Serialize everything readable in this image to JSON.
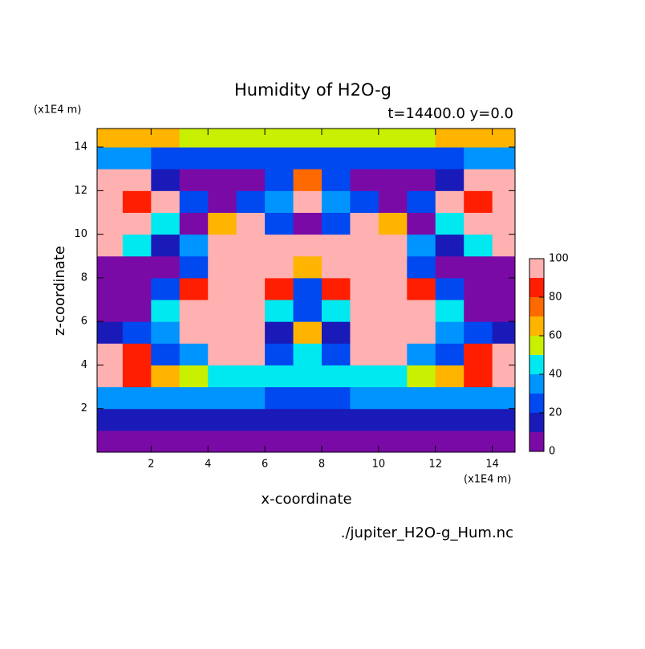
{
  "chart_data": {
    "type": "contour",
    "title": "Humidity of H2O-g",
    "subtitle": "t=14400.0 y=0.0",
    "x_label": "x-coordinate",
    "y_label": "z-coordinate",
    "x_unit": "(x1E4 m)",
    "y_unit": "(x1E4 m)",
    "source": "./jupiter_H2O-g_Hum.nc",
    "xlim": [
      0.1,
      14.8
    ],
    "ylim": [
      0,
      14.85
    ],
    "xticks": [
      2,
      4,
      6,
      8,
      10,
      12,
      14
    ],
    "yticks": [
      2,
      4,
      6,
      8,
      10,
      12,
      14
    ],
    "x": [
      0.5,
      1.5,
      2.5,
      3.5,
      4.5,
      5.5,
      6.5,
      7.5,
      8.5,
      9.5,
      10.5,
      11.5,
      12.5,
      13.5,
      14.5
    ],
    "y": [
      0.5,
      1.5,
      2.5,
      3.5,
      4.5,
      5.5,
      6.5,
      7.5,
      8.5,
      9.5,
      10.5,
      11.5,
      12.5,
      13.5,
      14.5
    ],
    "z": [
      [
        5,
        5,
        5,
        5,
        5,
        5,
        5,
        5,
        5,
        5,
        5,
        5,
        5,
        5,
        5
      ],
      [
        15,
        15,
        15,
        15,
        15,
        15,
        12,
        10,
        12,
        15,
        15,
        15,
        15,
        15,
        15
      ],
      [
        30,
        30,
        30,
        30,
        30,
        30,
        28,
        25,
        28,
        30,
        30,
        30,
        30,
        30,
        30
      ],
      [
        95,
        85,
        60,
        55,
        45,
        45,
        45,
        45,
        45,
        45,
        45,
        55,
        60,
        85,
        95
      ],
      [
        95,
        85,
        25,
        30,
        95,
        95,
        25,
        45,
        25,
        95,
        95,
        30,
        25,
        85,
        95
      ],
      [
        15,
        25,
        35,
        95,
        95,
        95,
        15,
        65,
        15,
        95,
        95,
        95,
        35,
        25,
        15
      ],
      [
        5,
        8,
        45,
        95,
        95,
        95,
        45,
        20,
        45,
        95,
        95,
        95,
        45,
        8,
        5
      ],
      [
        5,
        5,
        20,
        85,
        95,
        95,
        80,
        25,
        80,
        95,
        95,
        85,
        20,
        5,
        5
      ],
      [
        5,
        5,
        8,
        25,
        95,
        95,
        95,
        65,
        95,
        95,
        95,
        25,
        8,
        5,
        5
      ],
      [
        95,
        40,
        15,
        30,
        95,
        95,
        95,
        95,
        95,
        95,
        95,
        30,
        15,
        40,
        95
      ],
      [
        95,
        95,
        45,
        8,
        65,
        95,
        20,
        8,
        20,
        95,
        65,
        8,
        45,
        95,
        95
      ],
      [
        95,
        85,
        95,
        25,
        5,
        20,
        30,
        95,
        30,
        20,
        5,
        25,
        95,
        85,
        95
      ],
      [
        95,
        95,
        15,
        5,
        5,
        5,
        25,
        70,
        25,
        5,
        5,
        5,
        15,
        95,
        95
      ],
      [
        35,
        30,
        25,
        20,
        20,
        20,
        20,
        20,
        20,
        20,
        20,
        20,
        25,
        30,
        35
      ],
      [
        65,
        65,
        60,
        55,
        55,
        55,
        55,
        55,
        55,
        55,
        55,
        55,
        60,
        65,
        65
      ]
    ],
    "levels": [
      0,
      10,
      20,
      30,
      40,
      50,
      60,
      70,
      80,
      90,
      100
    ],
    "colors": [
      "#7a0aa6",
      "#1a1ab8",
      "#0048f0",
      "#0094ff",
      "#00e8f0",
      "#c8f000",
      "#ffb400",
      "#ff6a00",
      "#ff1e00",
      "#ffb0b0"
    ],
    "colorbar_ticks": [
      0,
      20,
      40,
      60,
      80,
      100
    ]
  }
}
